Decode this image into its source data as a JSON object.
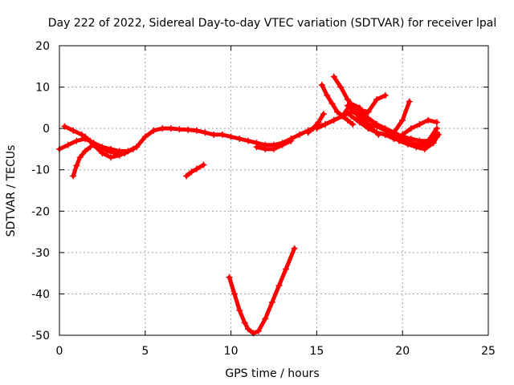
{
  "chart_data": {
    "type": "scatter",
    "title": "Day 222 of 2022, Sidereal Day-to-day VTEC variation (SDTVAR) for receiver lpal",
    "xlabel": "GPS time / hours",
    "ylabel": "SDTVAR / TECUs",
    "xlim": [
      0,
      25
    ],
    "ylim": [
      -50,
      20
    ],
    "xticks": [
      0,
      5,
      10,
      15,
      20,
      25
    ],
    "yticks": [
      -50,
      -40,
      -30,
      -20,
      -10,
      0,
      10,
      20
    ],
    "grid": true,
    "color": "#ff0000",
    "series": [
      {
        "x": [
          0.0,
          0.5,
          1.0,
          1.5,
          2.0,
          2.5,
          3.0,
          3.5,
          4.0,
          4.5,
          5.0,
          5.5,
          6.0,
          6.5,
          7.0,
          7.5,
          8.0,
          8.5,
          9.0,
          9.5,
          10.0,
          10.5,
          11.0,
          11.5,
          12.0,
          12.5,
          13.0,
          13.5,
          14.0,
          14.5,
          15.0,
          15.5,
          16.0,
          16.5,
          17.0,
          17.5,
          18.0,
          18.5,
          19.0,
          19.5,
          20.0,
          20.5,
          21.0,
          21.5,
          22.0
        ],
        "y": [
          -5.0,
          -4.0,
          -3.0,
          -2.5,
          -3.5,
          -4.5,
          -5.0,
          -5.5,
          -5.5,
          -4.5,
          -2.0,
          -0.5,
          0.0,
          0.0,
          -0.2,
          -0.3,
          -0.5,
          -1.0,
          -1.5,
          -1.5,
          -2.0,
          -2.5,
          -3.0,
          -3.5,
          -4.0,
          -4.0,
          -3.5,
          -2.5,
          -1.5,
          -0.5,
          0.5,
          1.0,
          2.0,
          3.0,
          4.0,
          3.5,
          2.5,
          1.0,
          0.0,
          -1.0,
          -2.0,
          -2.5,
          -3.0,
          -3.0,
          -2.0
        ]
      },
      {
        "x": [
          0.3,
          0.8,
          1.3,
          1.8,
          2.3,
          2.8,
          3.3,
          3.8,
          4.3
        ],
        "y": [
          0.5,
          -0.5,
          -1.5,
          -3.0,
          -4.5,
          -5.5,
          -6.0,
          -6.0,
          -5.0
        ]
      },
      {
        "x": [
          0.8,
          1.0,
          1.2,
          1.5,
          1.8
        ],
        "y": [
          -11.5,
          -9.0,
          -7.0,
          -5.5,
          -4.5
        ]
      },
      {
        "x": [
          1.5,
          2.0,
          2.5,
          3.0,
          3.5,
          4.0
        ],
        "y": [
          -2.0,
          -4.0,
          -6.0,
          -7.0,
          -6.5,
          -5.5
        ]
      },
      {
        "x": [
          7.4,
          7.7,
          8.0,
          8.4
        ],
        "y": [
          -11.5,
          -10.5,
          -9.8,
          -8.8
        ]
      },
      {
        "x": [
          9.9,
          10.2,
          10.5,
          10.8,
          11.0,
          11.3,
          11.6,
          12.0,
          12.4,
          12.8,
          13.2,
          13.7
        ],
        "y": [
          -36.0,
          -40.0,
          -44.0,
          -47.0,
          -48.5,
          -49.5,
          -49.0,
          -46.0,
          -42.0,
          -38.0,
          -34.0,
          -29.0
        ]
      },
      {
        "x": [
          15.3,
          15.6,
          15.9,
          16.2,
          16.5,
          16.8,
          17.1
        ],
        "y": [
          10.5,
          8.0,
          6.0,
          4.0,
          3.0,
          2.0,
          1.0
        ]
      },
      {
        "x": [
          16.0,
          16.4,
          16.8,
          17.2,
          17.6,
          18.0
        ],
        "y": [
          12.5,
          10.0,
          7.0,
          4.5,
          3.0,
          2.0
        ]
      },
      {
        "x": [
          16.5,
          17.0,
          17.5,
          17.8,
          18.1
        ],
        "y": [
          3.0,
          6.0,
          5.0,
          3.0,
          2.0
        ]
      },
      {
        "x": [
          17.5,
          18.0,
          18.5,
          19.0
        ],
        "y": [
          2.5,
          4.0,
          7.0,
          8.0
        ]
      },
      {
        "x": [
          16.8,
          17.3,
          17.8,
          18.2,
          18.6
        ],
        "y": [
          5.5,
          3.5,
          1.5,
          0.0,
          -1.5
        ]
      },
      {
        "x": [
          17.0,
          17.5,
          18.0,
          18.5,
          19.0,
          19.5,
          20.0,
          20.4
        ],
        "y": [
          3.0,
          1.5,
          0.0,
          -1.0,
          -1.5,
          -1.0,
          2.0,
          6.5
        ]
      },
      {
        "x": [
          18.0,
          18.5,
          19.0,
          19.5,
          20.0,
          20.5,
          21.0,
          21.5,
          22.0
        ],
        "y": [
          1.0,
          0.5,
          -0.5,
          -1.5,
          -2.5,
          -3.5,
          -4.5,
          -4.0,
          -1.0
        ]
      },
      {
        "x": [
          19.0,
          19.5,
          20.0,
          20.5,
          21.0,
          21.5,
          22.0
        ],
        "y": [
          -1.5,
          -2.5,
          -3.0,
          -3.5,
          -4.0,
          -3.0,
          0.0
        ]
      },
      {
        "x": [
          19.5,
          20.0,
          20.5,
          21.0,
          21.5,
          22.0
        ],
        "y": [
          -2.5,
          -1.5,
          0.0,
          1.0,
          2.0,
          1.5
        ]
      },
      {
        "x": [
          19.8,
          20.3,
          20.8,
          21.3,
          21.8,
          22.1
        ],
        "y": [
          -3.0,
          -3.8,
          -4.5,
          -5.0,
          -3.5,
          -1.5
        ]
      },
      {
        "x": [
          14.5,
          14.8,
          15.1,
          15.4
        ],
        "y": [
          -1.0,
          0.0,
          1.5,
          3.5
        ]
      },
      {
        "x": [
          15.0,
          15.5,
          16.0,
          16.5,
          17.0,
          17.5,
          18.0
        ],
        "y": [
          0.0,
          1.0,
          2.0,
          3.0,
          4.0,
          4.5,
          4.0
        ]
      },
      {
        "x": [
          11.5,
          12.0,
          12.5,
          13.0,
          13.5
        ],
        "y": [
          -4.5,
          -5.0,
          -5.0,
          -4.0,
          -3.0
        ]
      }
    ]
  }
}
